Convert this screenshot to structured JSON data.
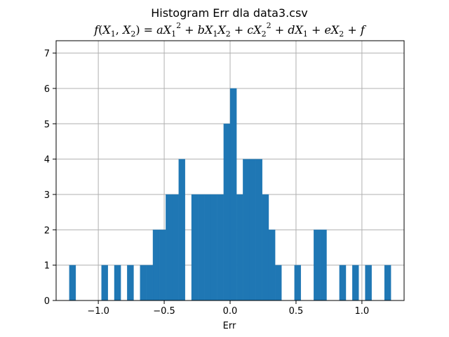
{
  "chart_data": {
    "type": "bar",
    "subtype": "histogram",
    "title": "Histogram Err dla data3.csv",
    "subtitle_math": {
      "lhs": "f(X1, X2)",
      "rhs": "aX1^2 + bX1X2 + cX2^2 + dX1 + eX2 + f"
    },
    "xlabel": "Err",
    "ylabel": "",
    "xlim": [
      -1.32,
      1.32
    ],
    "ylim": [
      0,
      7.35
    ],
    "xticks": [
      -1.0,
      -0.5,
      0.0,
      0.5,
      1.0
    ],
    "xtick_labels": [
      "−1.0",
      "−0.5",
      "0.0",
      "0.5",
      "1.0"
    ],
    "yticks": [
      0,
      1,
      2,
      3,
      4,
      5,
      6,
      7
    ],
    "ytick_labels": [
      "0",
      "1",
      "2",
      "3",
      "4",
      "5",
      "6",
      "7"
    ],
    "grid": true,
    "bar_color": "#1f77b4",
    "bin_start": -1.22,
    "bin_width": 0.0488,
    "counts": [
      1,
      0,
      0,
      0,
      0,
      1,
      0,
      1,
      0,
      1,
      0,
      1,
      1,
      2,
      2,
      3,
      3,
      4,
      0,
      3,
      3,
      3,
      3,
      3,
      5,
      6,
      3,
      4,
      4,
      4,
      3,
      2,
      1,
      0,
      0,
      1,
      0,
      0,
      2,
      2,
      0,
      0,
      1,
      0,
      1,
      0,
      1,
      0,
      0,
      1
    ]
  }
}
